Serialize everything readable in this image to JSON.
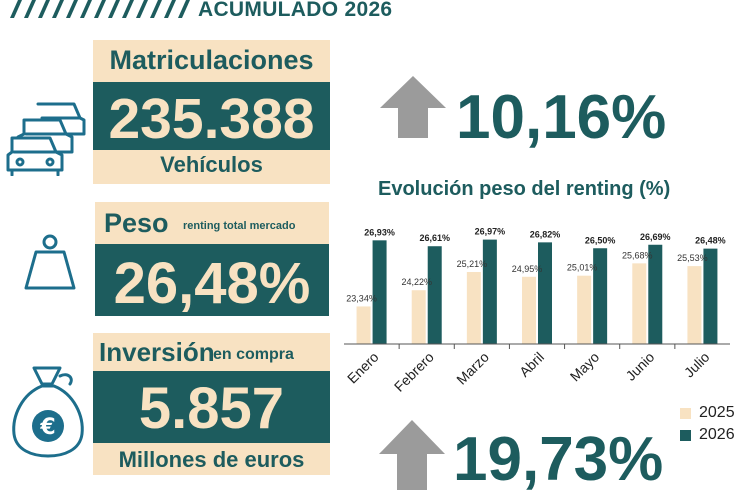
{
  "header": {
    "title": "ACUMULADO 2026"
  },
  "cards": {
    "registrations": {
      "label": "Matriculaciones",
      "value": "235.388",
      "unit": "Vehículos",
      "growth": "10,16%"
    },
    "weight": {
      "label": "Peso",
      "sublabel": "renting total mercado",
      "value": "26,48%"
    },
    "investment": {
      "label": "Inversión",
      "sublabel": "en compra",
      "value": "5.857",
      "unit": "Millones de euros",
      "growth": "19,73%"
    }
  },
  "icons": {
    "cars": "cars-icon",
    "weight": "weight-icon",
    "money": "money-bag-euro-icon",
    "arrow": "up-arrow-icon"
  },
  "colors": {
    "teal": "#1d5c5e",
    "beige": "#f8e2c2",
    "grey_arrow": "#9b9b9b",
    "icon_blue": "#1d6e8c"
  },
  "chart_data": {
    "type": "bar",
    "title": "Evolución peso del renting (%)",
    "categories": [
      "Enero",
      "Febrero",
      "Marzo",
      "Abril",
      "Mayo",
      "Junio",
      "Julio"
    ],
    "series": [
      {
        "name": "2025",
        "values": [
          23.34,
          24.22,
          25.21,
          24.95,
          25.01,
          25.68,
          25.53
        ],
        "labels": [
          "23,34%",
          "24,22%",
          "25,21%",
          "24,95%",
          "25,01%",
          "25,68%",
          "25,53%"
        ],
        "color": "#f8e2c2"
      },
      {
        "name": "2026",
        "values": [
          26.93,
          26.61,
          26.97,
          26.82,
          26.5,
          26.69,
          26.48
        ],
        "labels": [
          "26,93%",
          "26,61%",
          "26,97%",
          "26,82%",
          "26,50%",
          "26,69%",
          "26,48%"
        ],
        "color": "#1d5c5e"
      }
    ],
    "ylim": [
      21.3,
      27.6
    ],
    "grid": false,
    "legend_position": "bottom-right"
  }
}
